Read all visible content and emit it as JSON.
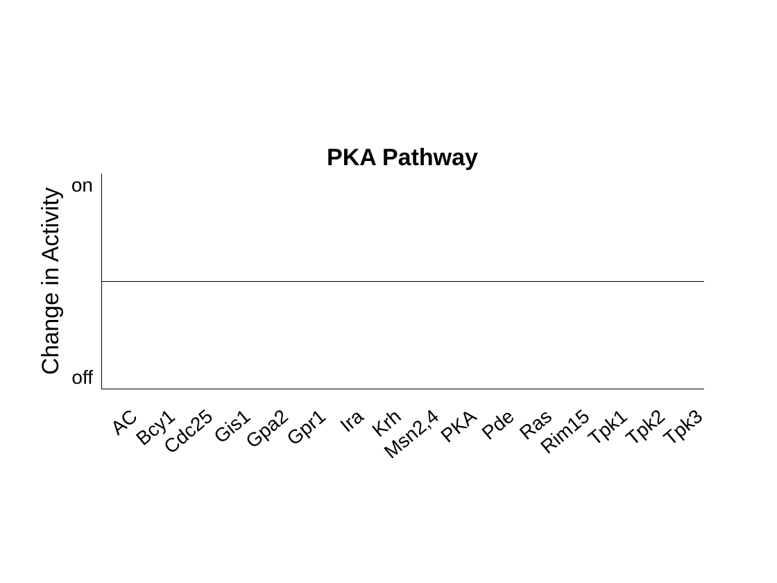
{
  "chart_data": {
    "type": "bar",
    "title": "PKA Pathway",
    "xlabel": "",
    "ylabel": "Change in Activity",
    "categories": [
      "AC",
      "Bcy1",
      "Cdc25",
      "Gis1",
      "Gpa2",
      "Gpr1",
      "Ira",
      "Krh",
      "Msn2,4",
      "PKA",
      "Pde",
      "Ras",
      "Rim15",
      "Tpk1",
      "Tpk2",
      "Tpk3"
    ],
    "values": [
      0,
      0,
      0,
      0,
      0,
      0,
      0,
      0,
      0,
      0,
      0,
      0,
      0,
      0,
      0,
      0
    ],
    "ylim": [
      -1,
      1
    ],
    "yticks": [
      -1,
      1
    ],
    "ytick_labels": [
      "off",
      "on"
    ],
    "baseline": 0,
    "grid": false,
    "colors": {
      "axis": "#000000",
      "text": "#000000",
      "background": "#ffffff"
    }
  }
}
